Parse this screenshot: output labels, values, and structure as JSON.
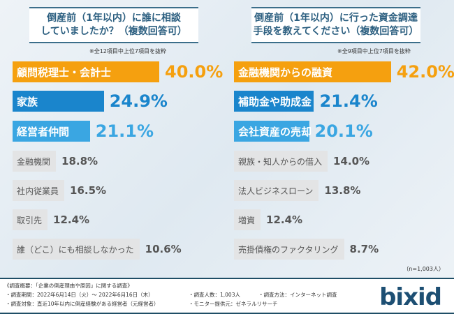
{
  "chart_data": [
    {
      "type": "bar",
      "title": "倒産前（1年以内）に誰に相談していましたか？（複数回答可）",
      "note": "※全12項目中上位7項目を抜粋",
      "categories": [
        "顧問税理士・会計士",
        "家族",
        "経営者仲間",
        "金融機関",
        "社内従業員",
        "取引先",
        "誰（どこ）にも相談しなかった"
      ],
      "values": [
        40.0,
        24.9,
        21.1,
        18.8,
        16.5,
        12.4,
        10.6
      ],
      "unit": "%"
    },
    {
      "type": "bar",
      "title": "倒産前（1年以内）に行った資金調達手段を教えてください（複数回答可）",
      "note": "※全9項目中上位7項目を抜粋",
      "categories": [
        "金融機関からの融資",
        "補助金や助成金",
        "会社資産の売却",
        "親族・知人からの借入",
        "法人ビジネスローン",
        "増資",
        "売掛債権のファクタリング"
      ],
      "values": [
        42.0,
        21.4,
        20.1,
        14.0,
        13.8,
        12.4,
        8.7
      ],
      "unit": "%"
    }
  ],
  "titles": {
    "left1": "倒産前（1年以内）に誰に相談",
    "left2": "していましたか？（複数回答可）",
    "right1": "倒産前（1年以内）に行った資金調達",
    "right2": "手段を教えてください（複数回答可）"
  },
  "sample": "（n=1,003人）",
  "footer": {
    "l1": "《調査概要：「企業の倒産理由や原因」に関する調査》",
    "l2": "・調査期間：2022年6月14日（火）～ 2022年6月16日（木）",
    "l3": "・調査対象：直近10年以内に倒産経験がある経営者（元経営者）",
    "l4": "・調査人数：1,003人",
    "l5": "・調査方法：インターネット調査",
    "l6": "・モニター提供元：ゼネラルリサーチ",
    "logo": "bixid"
  },
  "colors": {
    "top": "#f5a00f",
    "second": "#1a85cc",
    "third": "#3aa6e2",
    "other": "#e3e4e5"
  }
}
